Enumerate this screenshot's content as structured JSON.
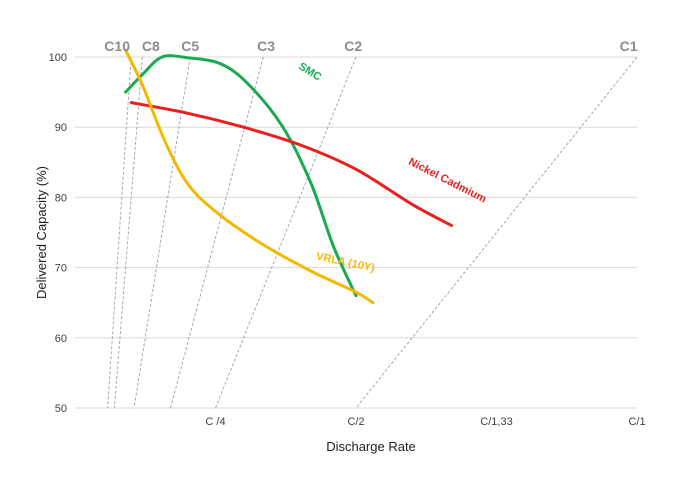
{
  "chart_data": {
    "type": "line",
    "xlabel": "Discharge Rate",
    "ylabel": "Delivered Capacity (%)",
    "ylim": [
      50,
      100
    ],
    "yticks": [
      50,
      60,
      70,
      80,
      90,
      100
    ],
    "xticks": [
      "C /4",
      "C/2",
      "C/1,33",
      "C/1"
    ],
    "grid": true,
    "rate_lines": [
      "C10",
      "C8",
      "C5",
      "C3",
      "C2",
      "C1"
    ],
    "series": [
      {
        "name": "SMC",
        "color": "#1aaa50",
        "points": [
          [
            0.09,
            95
          ],
          [
            0.12,
            97.5
          ],
          [
            0.155,
            100
          ],
          [
            0.2,
            99.9
          ],
          [
            0.26,
            99
          ],
          [
            0.31,
            96
          ],
          [
            0.37,
            90
          ],
          [
            0.42,
            82
          ],
          [
            0.46,
            73
          ],
          [
            0.5,
            66
          ]
        ]
      },
      {
        "name": "Nickel Cadmium",
        "color": "#e8201e",
        "points": [
          [
            0.1,
            93.5
          ],
          [
            0.2,
            92
          ],
          [
            0.3,
            90
          ],
          [
            0.4,
            87.5
          ],
          [
            0.5,
            84
          ],
          [
            0.6,
            79
          ],
          [
            0.67,
            76
          ]
        ]
      },
      {
        "name": "VRLA (10Y)",
        "color": "#f5b800",
        "points": [
          [
            0.09,
            101
          ],
          [
            0.12,
            96
          ],
          [
            0.16,
            88
          ],
          [
            0.2,
            82
          ],
          [
            0.25,
            78
          ],
          [
            0.33,
            73.5
          ],
          [
            0.42,
            69.5
          ],
          [
            0.5,
            66.5
          ],
          [
            0.53,
            65
          ]
        ]
      }
    ]
  }
}
